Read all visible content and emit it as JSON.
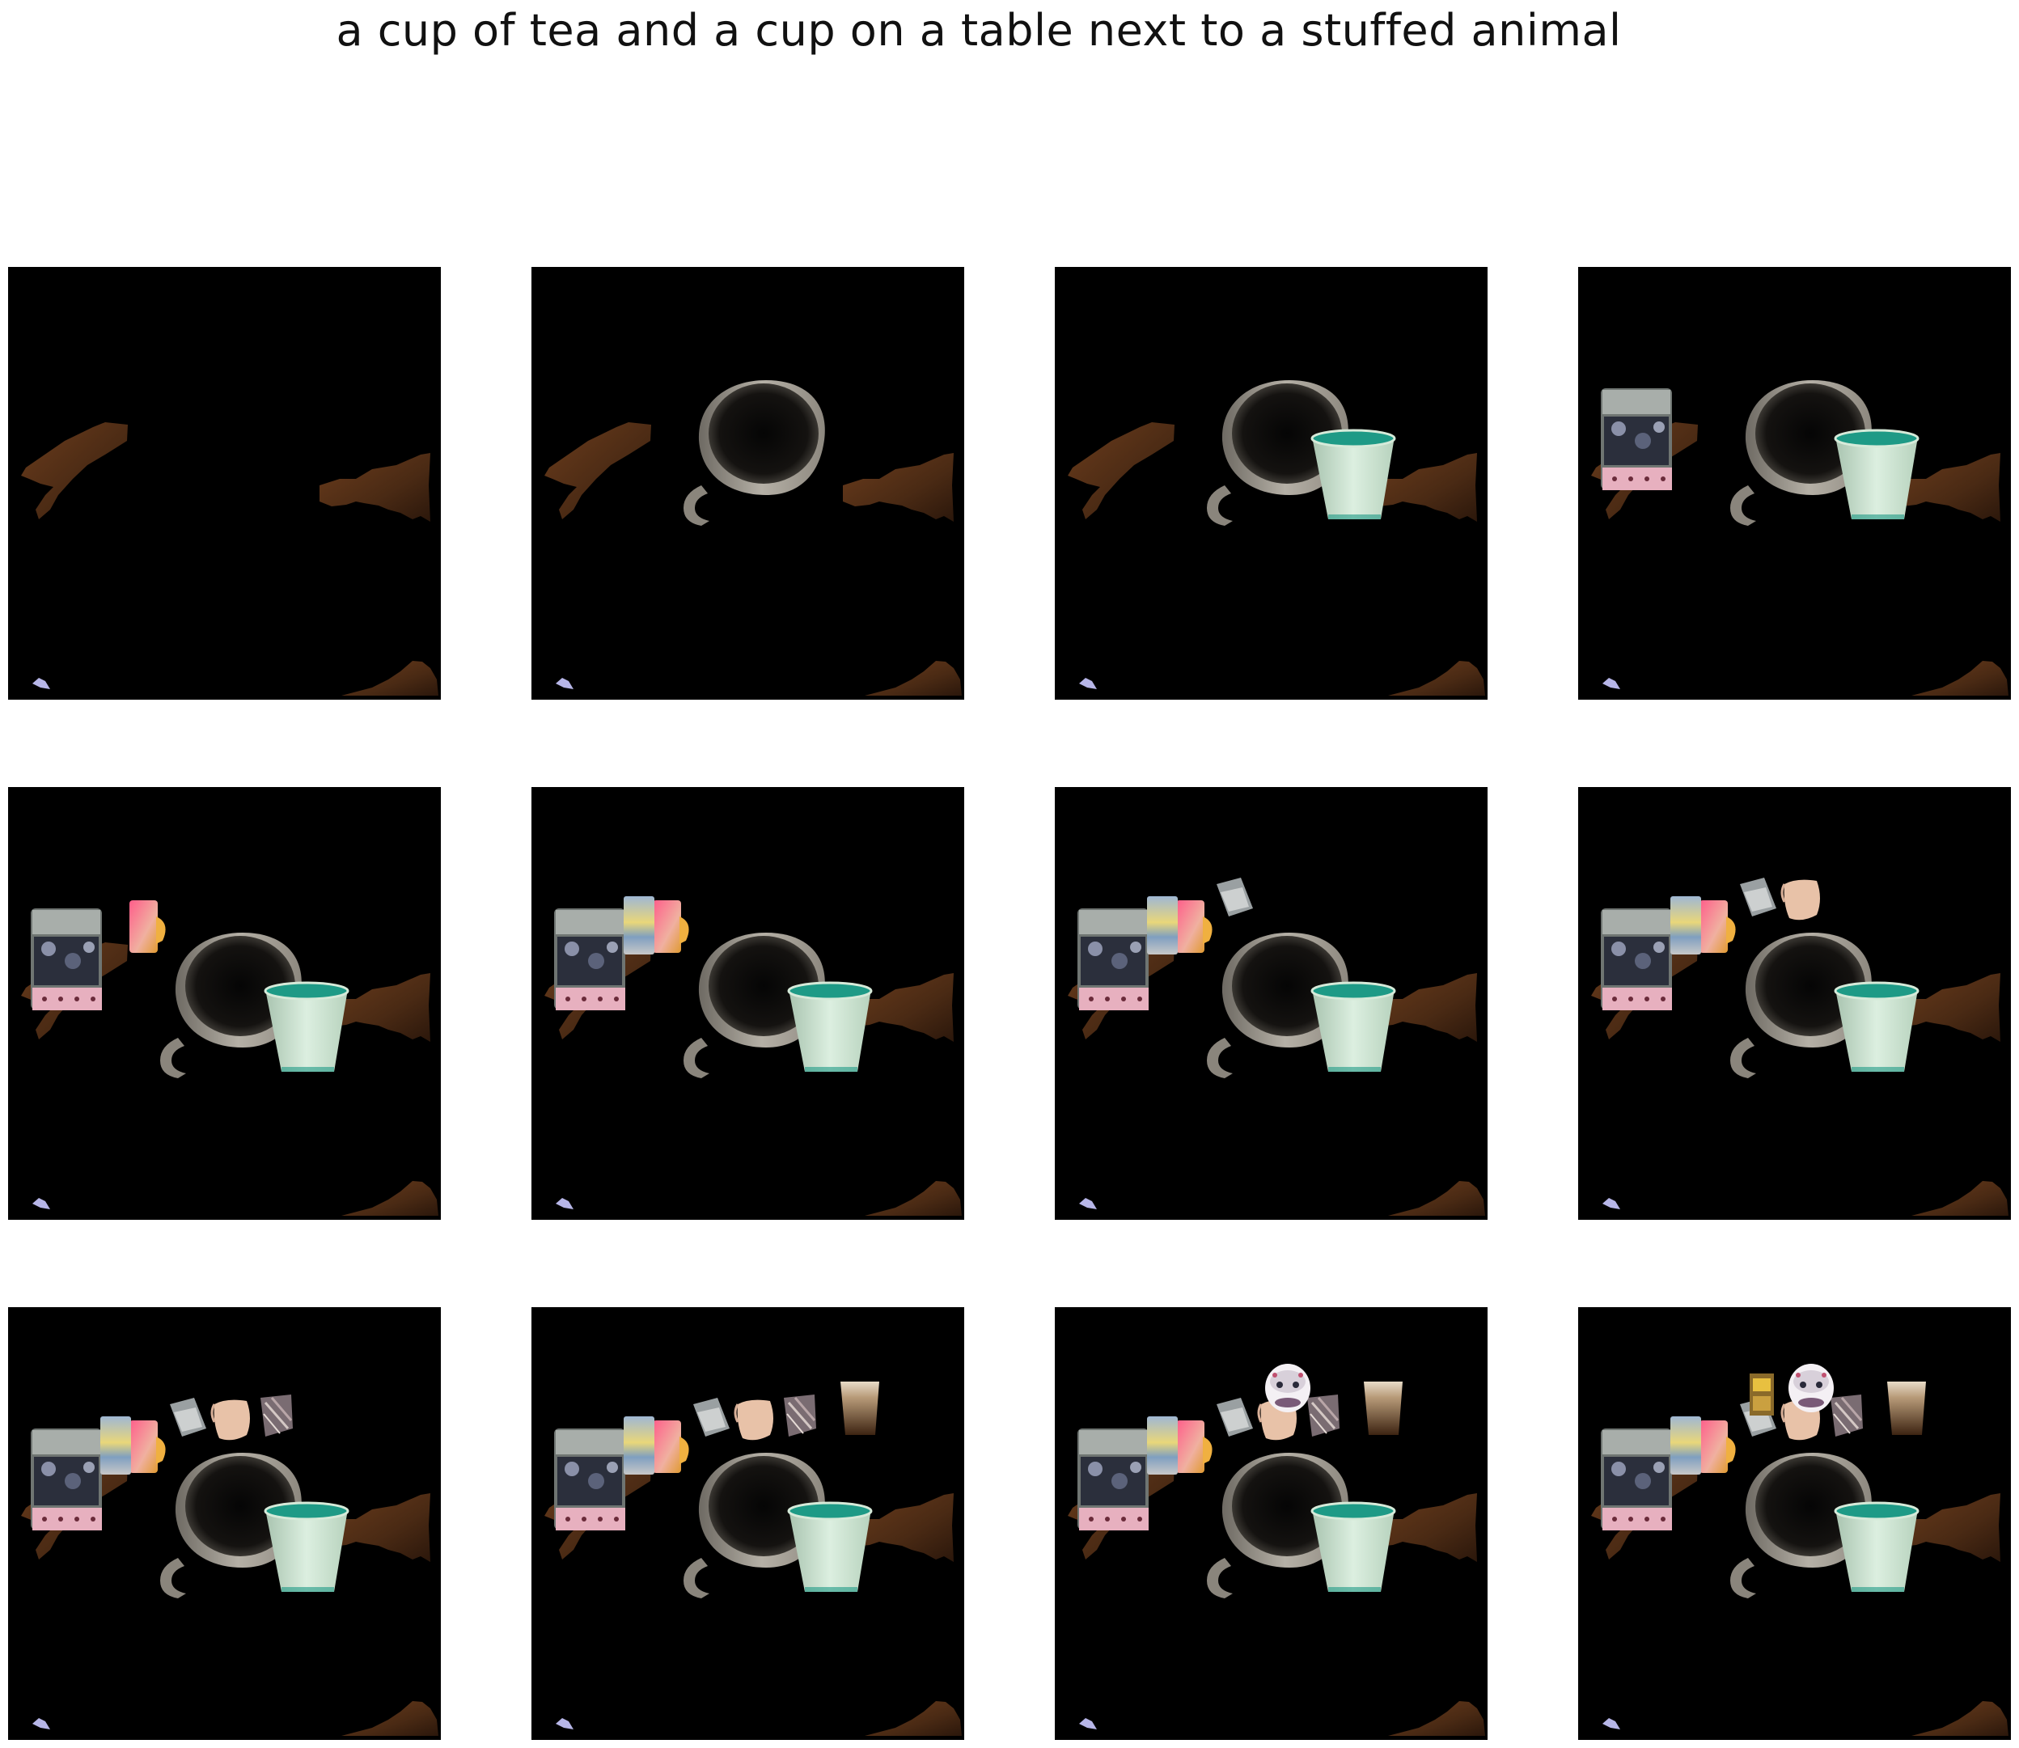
{
  "caption": "a cup of tea and a cup on a table next to a stuffed animal",
  "grid": {
    "rows": 3,
    "cols": 4
  },
  "panels": [
    {
      "objects": [
        "table-left",
        "table-right",
        "table-bottom",
        "blue-fragment"
      ]
    },
    {
      "objects": [
        "table-left",
        "table-right",
        "table-bottom",
        "blue-fragment",
        "mug"
      ]
    },
    {
      "objects": [
        "table-left",
        "table-right",
        "table-bottom",
        "blue-fragment",
        "mug",
        "cup"
      ]
    },
    {
      "objects": [
        "table-left",
        "table-right",
        "table-bottom",
        "blue-fragment",
        "mug",
        "cup",
        "jar"
      ]
    },
    {
      "objects": [
        "table-left",
        "table-right",
        "table-bottom",
        "blue-fragment",
        "mug",
        "cup",
        "jar",
        "pink-glass"
      ]
    },
    {
      "objects": [
        "table-left",
        "table-right",
        "table-bottom",
        "blue-fragment",
        "mug",
        "cup",
        "jar",
        "pink-glass",
        "yellow-glass"
      ]
    },
    {
      "objects": [
        "table-left",
        "table-right",
        "table-bottom",
        "blue-fragment",
        "mug",
        "cup",
        "jar",
        "pink-glass",
        "yellow-glass",
        "gray-bag"
      ]
    },
    {
      "objects": [
        "table-left",
        "table-right",
        "table-bottom",
        "blue-fragment",
        "mug",
        "cup",
        "jar",
        "pink-glass",
        "yellow-glass",
        "gray-bag",
        "peach-cup"
      ]
    },
    {
      "objects": [
        "table-left",
        "table-right",
        "table-bottom",
        "blue-fragment",
        "mug",
        "cup",
        "jar",
        "pink-glass",
        "yellow-glass",
        "gray-bag",
        "peach-cup",
        "pattern-box"
      ]
    },
    {
      "objects": [
        "table-left",
        "table-right",
        "table-bottom",
        "blue-fragment",
        "mug",
        "cup",
        "jar",
        "pink-glass",
        "yellow-glass",
        "gray-bag",
        "peach-cup",
        "pattern-box",
        "brown-glass"
      ]
    },
    {
      "objects": [
        "table-left",
        "table-right",
        "table-bottom",
        "blue-fragment",
        "mug",
        "cup",
        "jar",
        "pink-glass",
        "yellow-glass",
        "gray-bag",
        "peach-cup",
        "pattern-box",
        "brown-glass",
        "stuffed-animal"
      ]
    },
    {
      "objects": [
        "table-left",
        "table-right",
        "table-bottom",
        "blue-fragment",
        "mug",
        "cup",
        "jar",
        "pink-glass",
        "yellow-glass",
        "gray-bag",
        "peach-cup",
        "pattern-box",
        "brown-glass",
        "stuffed-animal",
        "yellow-box"
      ]
    }
  ],
  "colors": {
    "background": "#000000",
    "table": "#5a3318",
    "mug": "#9a958c",
    "cup": "#cfe6d4",
    "tea": "#1e9a86"
  }
}
